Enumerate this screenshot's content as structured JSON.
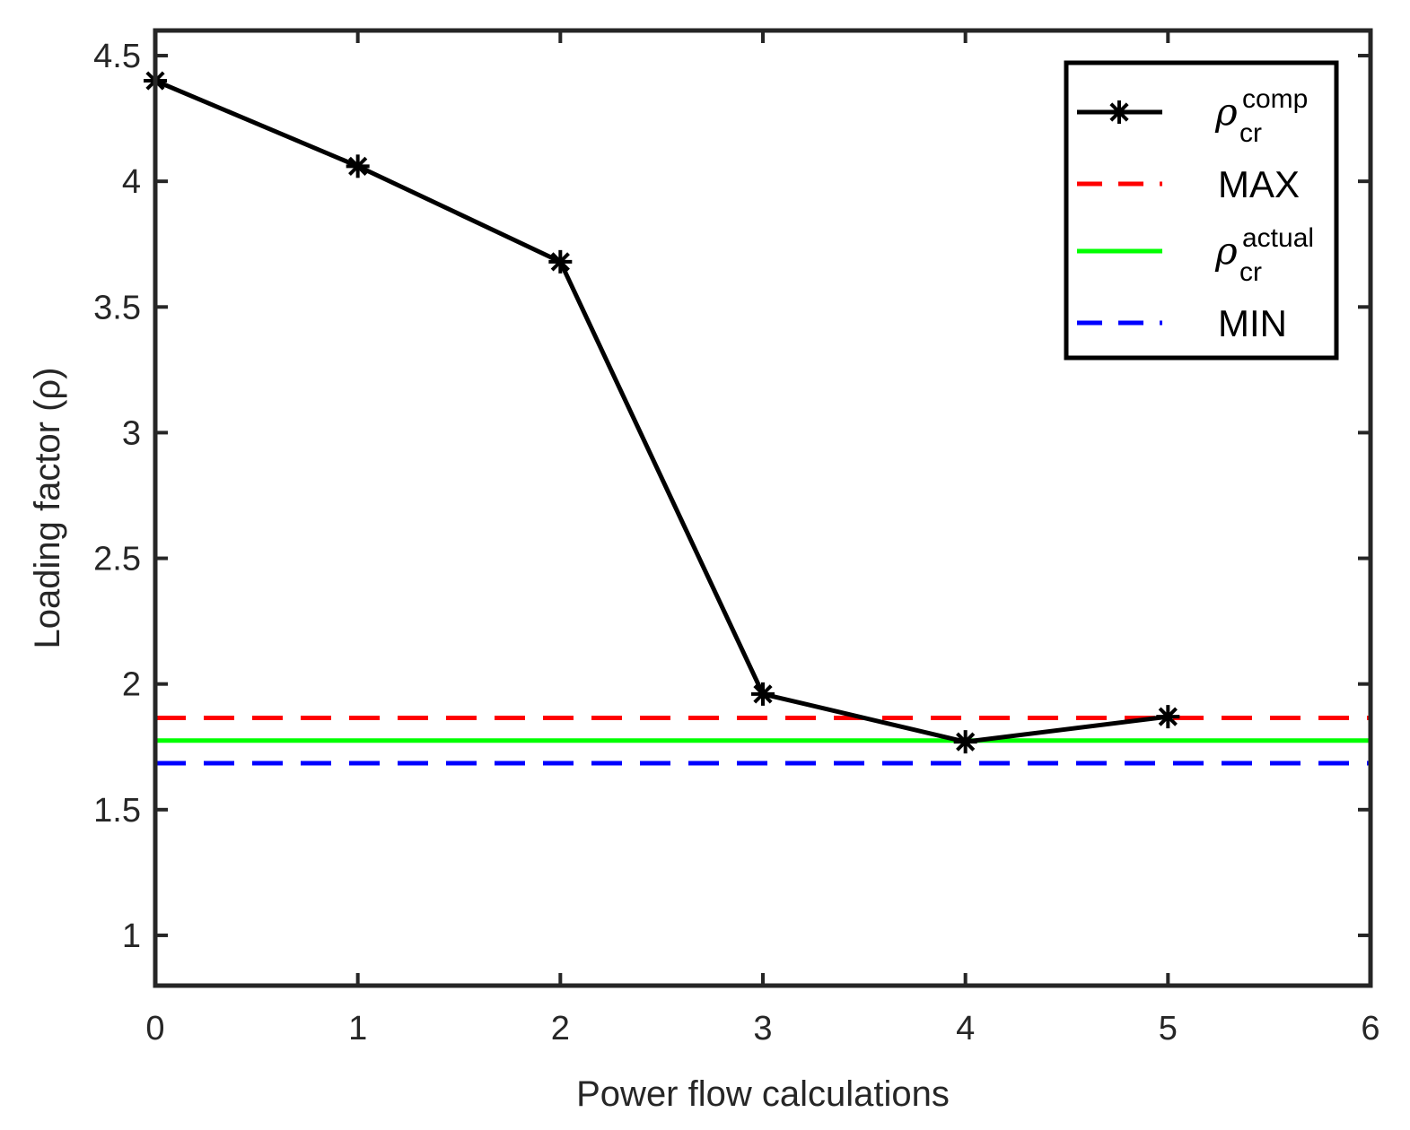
{
  "chart_data": {
    "type": "line",
    "title": "",
    "xlabel": "Power flow calculations",
    "ylabel": "Loading factor (ρ)",
    "xlim": [
      0,
      6
    ],
    "ylim": [
      0.8,
      4.6
    ],
    "xticks": [
      0,
      1,
      2,
      3,
      4,
      5,
      6
    ],
    "yticks": [
      1,
      1.5,
      2,
      2.5,
      3,
      3.5,
      4,
      4.5
    ],
    "xtick_labels": [
      "0",
      "1",
      "2",
      "3",
      "4",
      "5",
      "6"
    ],
    "ytick_labels": [
      "1",
      "1.5",
      "2",
      "2.5",
      "3",
      "3.5",
      "4",
      "4.5"
    ],
    "grid": false,
    "legend_position": "top-right",
    "series": [
      {
        "name": "ρ_cr^comp",
        "legend_symbol": "ρ",
        "legend_sub": "cr",
        "legend_sup": "comp",
        "style": "solid",
        "marker": "asterisk",
        "color": "#000000",
        "x": [
          0,
          1,
          2,
          3,
          4,
          5
        ],
        "y": [
          4.4,
          4.06,
          3.68,
          1.96,
          1.77,
          1.87
        ]
      },
      {
        "name": "MAX",
        "legend_text": "MAX",
        "style": "dashed",
        "color": "#ff0000",
        "constant": 1.865
      },
      {
        "name": "ρ_cr^actual",
        "legend_symbol": "ρ",
        "legend_sub": "cr",
        "legend_sup": "actual",
        "style": "solid",
        "color": "#00ff00",
        "constant": 1.775
      },
      {
        "name": "MIN",
        "legend_text": "MIN",
        "style": "dashed",
        "color": "#0000ff",
        "constant": 1.685
      }
    ]
  }
}
